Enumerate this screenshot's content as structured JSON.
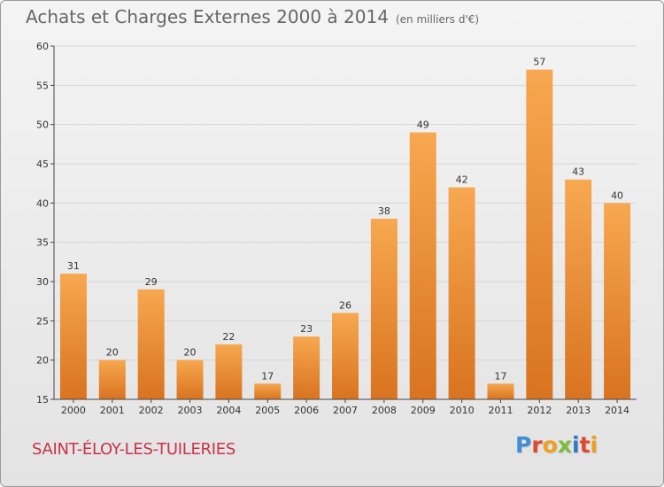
{
  "header": {
    "title": "Achats et Charges Externes 2000 à 2014",
    "unit": "(en milliers d'€)"
  },
  "footer": {
    "town": "SAINT-ÉLOY-LES-TUILERIES",
    "logo": "Proxiti"
  },
  "colors": {
    "bar_light": "#f7a850",
    "bar_dark": "#d9731f",
    "axis": "#444444",
    "grid": "#d6d6d6",
    "town": "#c8324b",
    "logo_letters": [
      "#3f8ed8",
      "#e2482e",
      "#f0a020",
      "#7cbd3b",
      "#2f78c8",
      "#e2482e",
      "#f0a020"
    ]
  },
  "chart_data": {
    "type": "bar",
    "title": "Achats et Charges Externes 2000 à 2014",
    "subtitle": "(en milliers d'€)",
    "categories": [
      "2000",
      "2001",
      "2002",
      "2003",
      "2004",
      "2005",
      "2006",
      "2007",
      "2008",
      "2009",
      "2010",
      "2011",
      "2012",
      "2013",
      "2014"
    ],
    "values": [
      31,
      20,
      29,
      20,
      22,
      17,
      23,
      26,
      38,
      49,
      42,
      17,
      57,
      43,
      40
    ],
    "ylim": [
      15,
      60
    ],
    "yticks": [
      15,
      20,
      25,
      30,
      35,
      40,
      45,
      50,
      55,
      60
    ],
    "grid": true,
    "data_labels": true
  }
}
